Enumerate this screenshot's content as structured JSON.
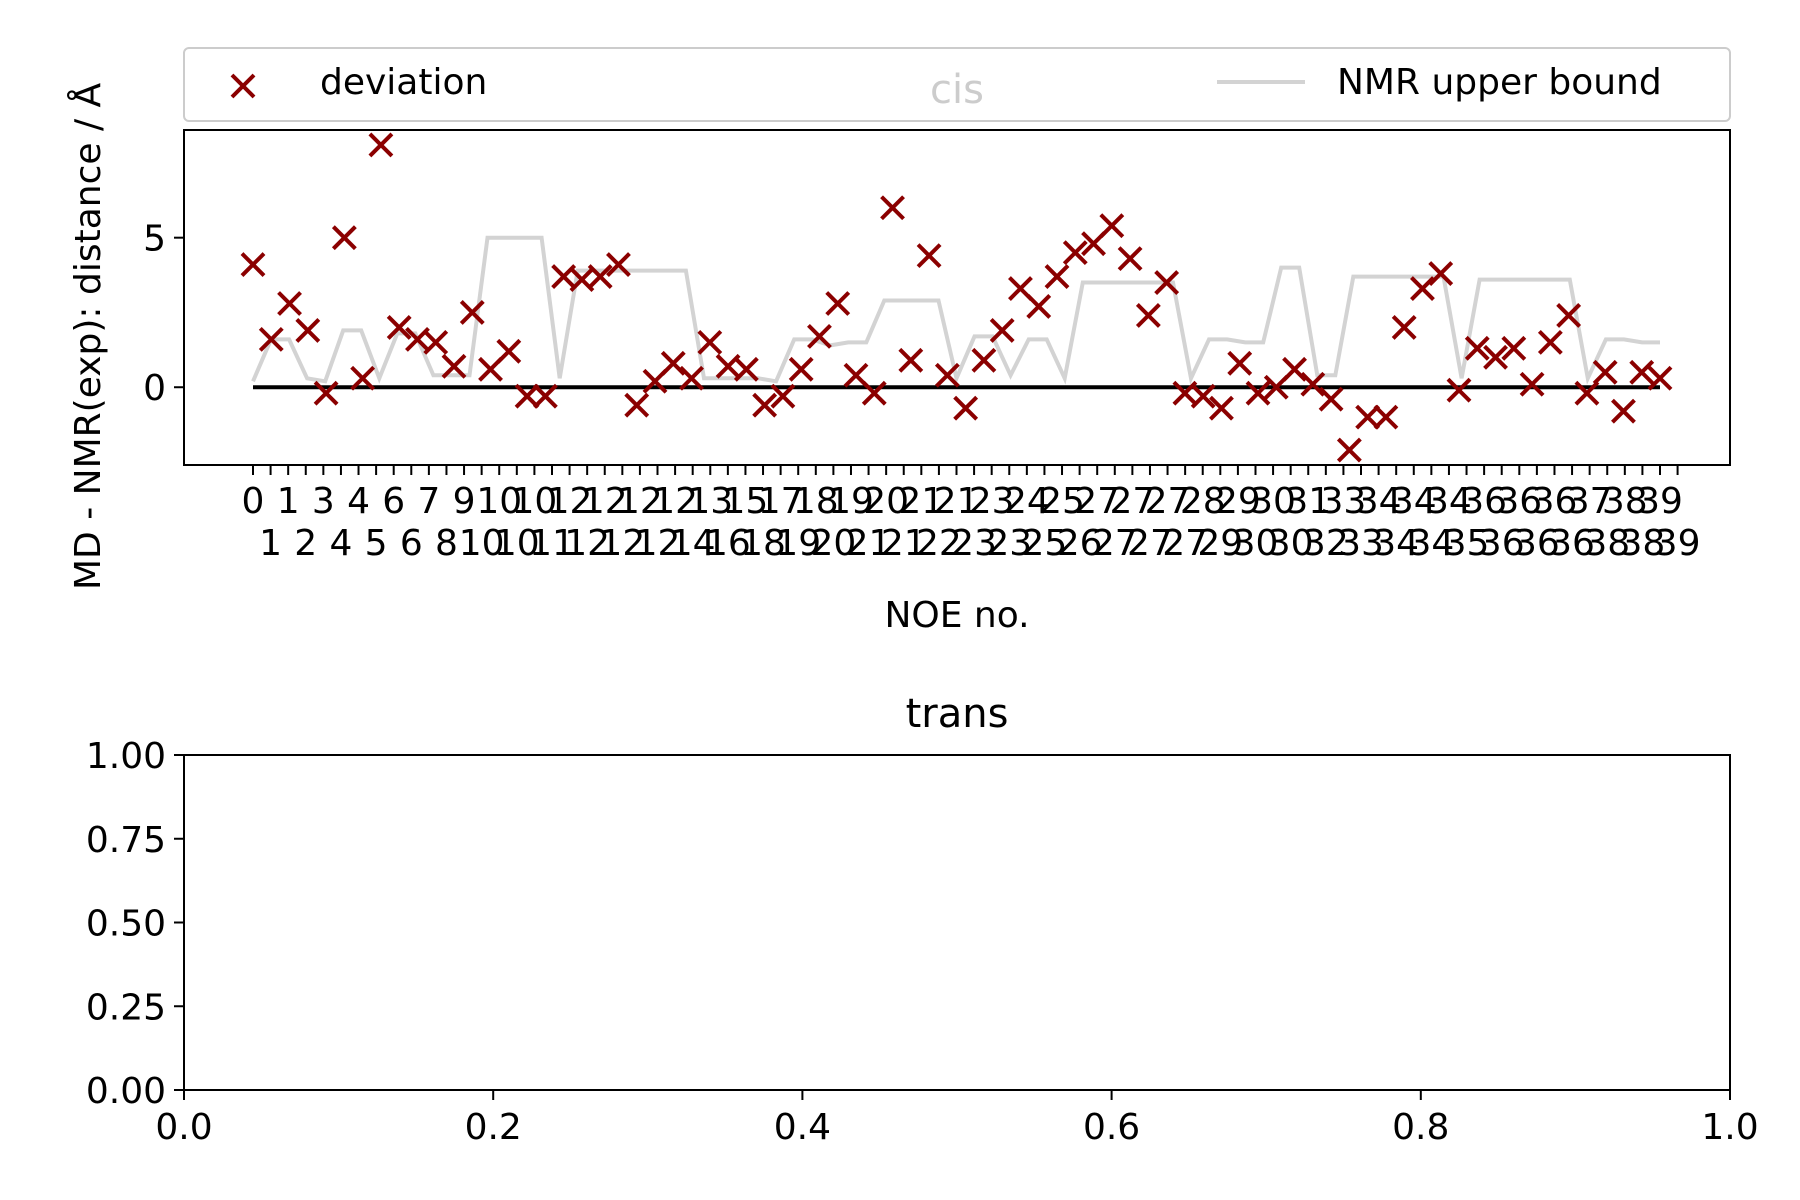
{
  "chart_data": [
    {
      "type": "scatter",
      "title": "cis",
      "xlabel": "NOE no.",
      "ylabel": "MD - NMR(exp): distance / Å",
      "ylim": [
        -2.6,
        8.6
      ],
      "yticks": [
        0,
        5
      ],
      "legend": {
        "placement": "top",
        "entries": [
          "deviation",
          "NMR upper bound"
        ]
      },
      "grid": false,
      "colors": {
        "deviation": "#8b0000",
        "bound": "#d3d3d3",
        "zero_line": "#000000"
      },
      "xtick_labels_top": [
        "0",
        "1",
        "3",
        "4",
        "6",
        "7",
        "9",
        "10",
        "10",
        "12",
        "12",
        "12",
        "12",
        "13",
        "15",
        "17",
        "18",
        "19",
        "20",
        "21",
        "21",
        "23",
        "24",
        "25",
        "27",
        "27",
        "27",
        "28",
        "29",
        "30",
        "31",
        "33",
        "34",
        "34",
        "34",
        "36",
        "36",
        "36",
        "37",
        "38",
        "39"
      ],
      "xtick_labels_bottom": [
        "1",
        "2",
        "4",
        "5",
        "6",
        "8",
        "10",
        "10",
        "11",
        "12",
        "12",
        "12",
        "14",
        "16",
        "18",
        "19",
        "20",
        "21",
        "21",
        "22",
        "23",
        "23",
        "25",
        "26",
        "27",
        "27",
        "27",
        "29",
        "30",
        "30",
        "32",
        "33",
        "34",
        "34",
        "35",
        "36",
        "36",
        "36",
        "38",
        "38",
        "39"
      ],
      "series": [
        {
          "name": "deviation",
          "kind": "scatter",
          "values": [
            4.1,
            1.6,
            2.8,
            1.9,
            -0.2,
            5.0,
            0.3,
            8.1,
            2.0,
            1.6,
            1.5,
            0.7,
            2.5,
            0.6,
            1.2,
            -0.3,
            -0.3,
            3.7,
            3.6,
            3.7,
            4.1,
            -0.6,
            0.2,
            0.8,
            0.3,
            1.5,
            0.7,
            0.6,
            -0.6,
            -0.3,
            0.6,
            1.7,
            2.8,
            0.4,
            -0.2,
            6.0,
            0.9,
            4.4,
            0.4,
            -0.7,
            0.9,
            1.9,
            3.3,
            2.7,
            3.7,
            4.5,
            4.8,
            5.4,
            4.3,
            2.4,
            3.5,
            -0.2,
            -0.3,
            -0.7,
            0.8,
            -0.2,
            0.0,
            0.6,
            0.1,
            -0.4,
            -2.1,
            -1.0,
            -1.0,
            2.0,
            3.3,
            3.8,
            -0.1,
            1.3,
            1.0,
            1.3,
            0.1,
            1.5,
            2.4,
            -0.2,
            0.5,
            -0.8,
            0.5,
            0.3
          ]
        },
        {
          "name": "NMR upper bound",
          "kind": "line",
          "values": [
            0.2,
            1.6,
            1.6,
            0.3,
            0.2,
            1.9,
            1.9,
            0.3,
            1.8,
            1.8,
            0.4,
            0.4,
            0.4,
            5.0,
            5.0,
            5.0,
            5.0,
            0.3,
            3.9,
            3.9,
            3.9,
            3.9,
            3.9,
            3.9,
            3.9,
            0.3,
            0.3,
            0.3,
            0.3,
            0.2,
            1.6,
            1.6,
            1.4,
            1.5,
            1.5,
            2.9,
            2.9,
            2.9,
            2.9,
            0.3,
            1.7,
            1.7,
            0.4,
            1.6,
            1.6,
            0.3,
            3.5,
            3.5,
            3.5,
            3.5,
            3.5,
            3.5,
            0.3,
            1.6,
            1.6,
            1.5,
            1.5,
            4.0,
            4.0,
            0.4,
            0.4,
            3.7,
            3.7,
            3.7,
            3.7,
            3.7,
            3.7,
            0.3,
            3.6,
            3.6,
            3.6,
            3.6,
            3.6,
            3.6,
            0.3,
            1.6,
            1.6,
            1.5,
            1.5
          ]
        },
        {
          "name": "",
          "kind": "zero_line",
          "values": [
            0,
            0
          ]
        }
      ]
    },
    {
      "type": "scatter",
      "title": "trans",
      "xlim": [
        0,
        1
      ],
      "ylim": [
        0,
        1
      ],
      "xticks": [
        "0.0",
        "0.2",
        "0.4",
        "0.6",
        "0.8",
        "1.0"
      ],
      "yticks": [
        "0.00",
        "0.25",
        "0.50",
        "0.75",
        "1.00"
      ],
      "series": []
    }
  ]
}
